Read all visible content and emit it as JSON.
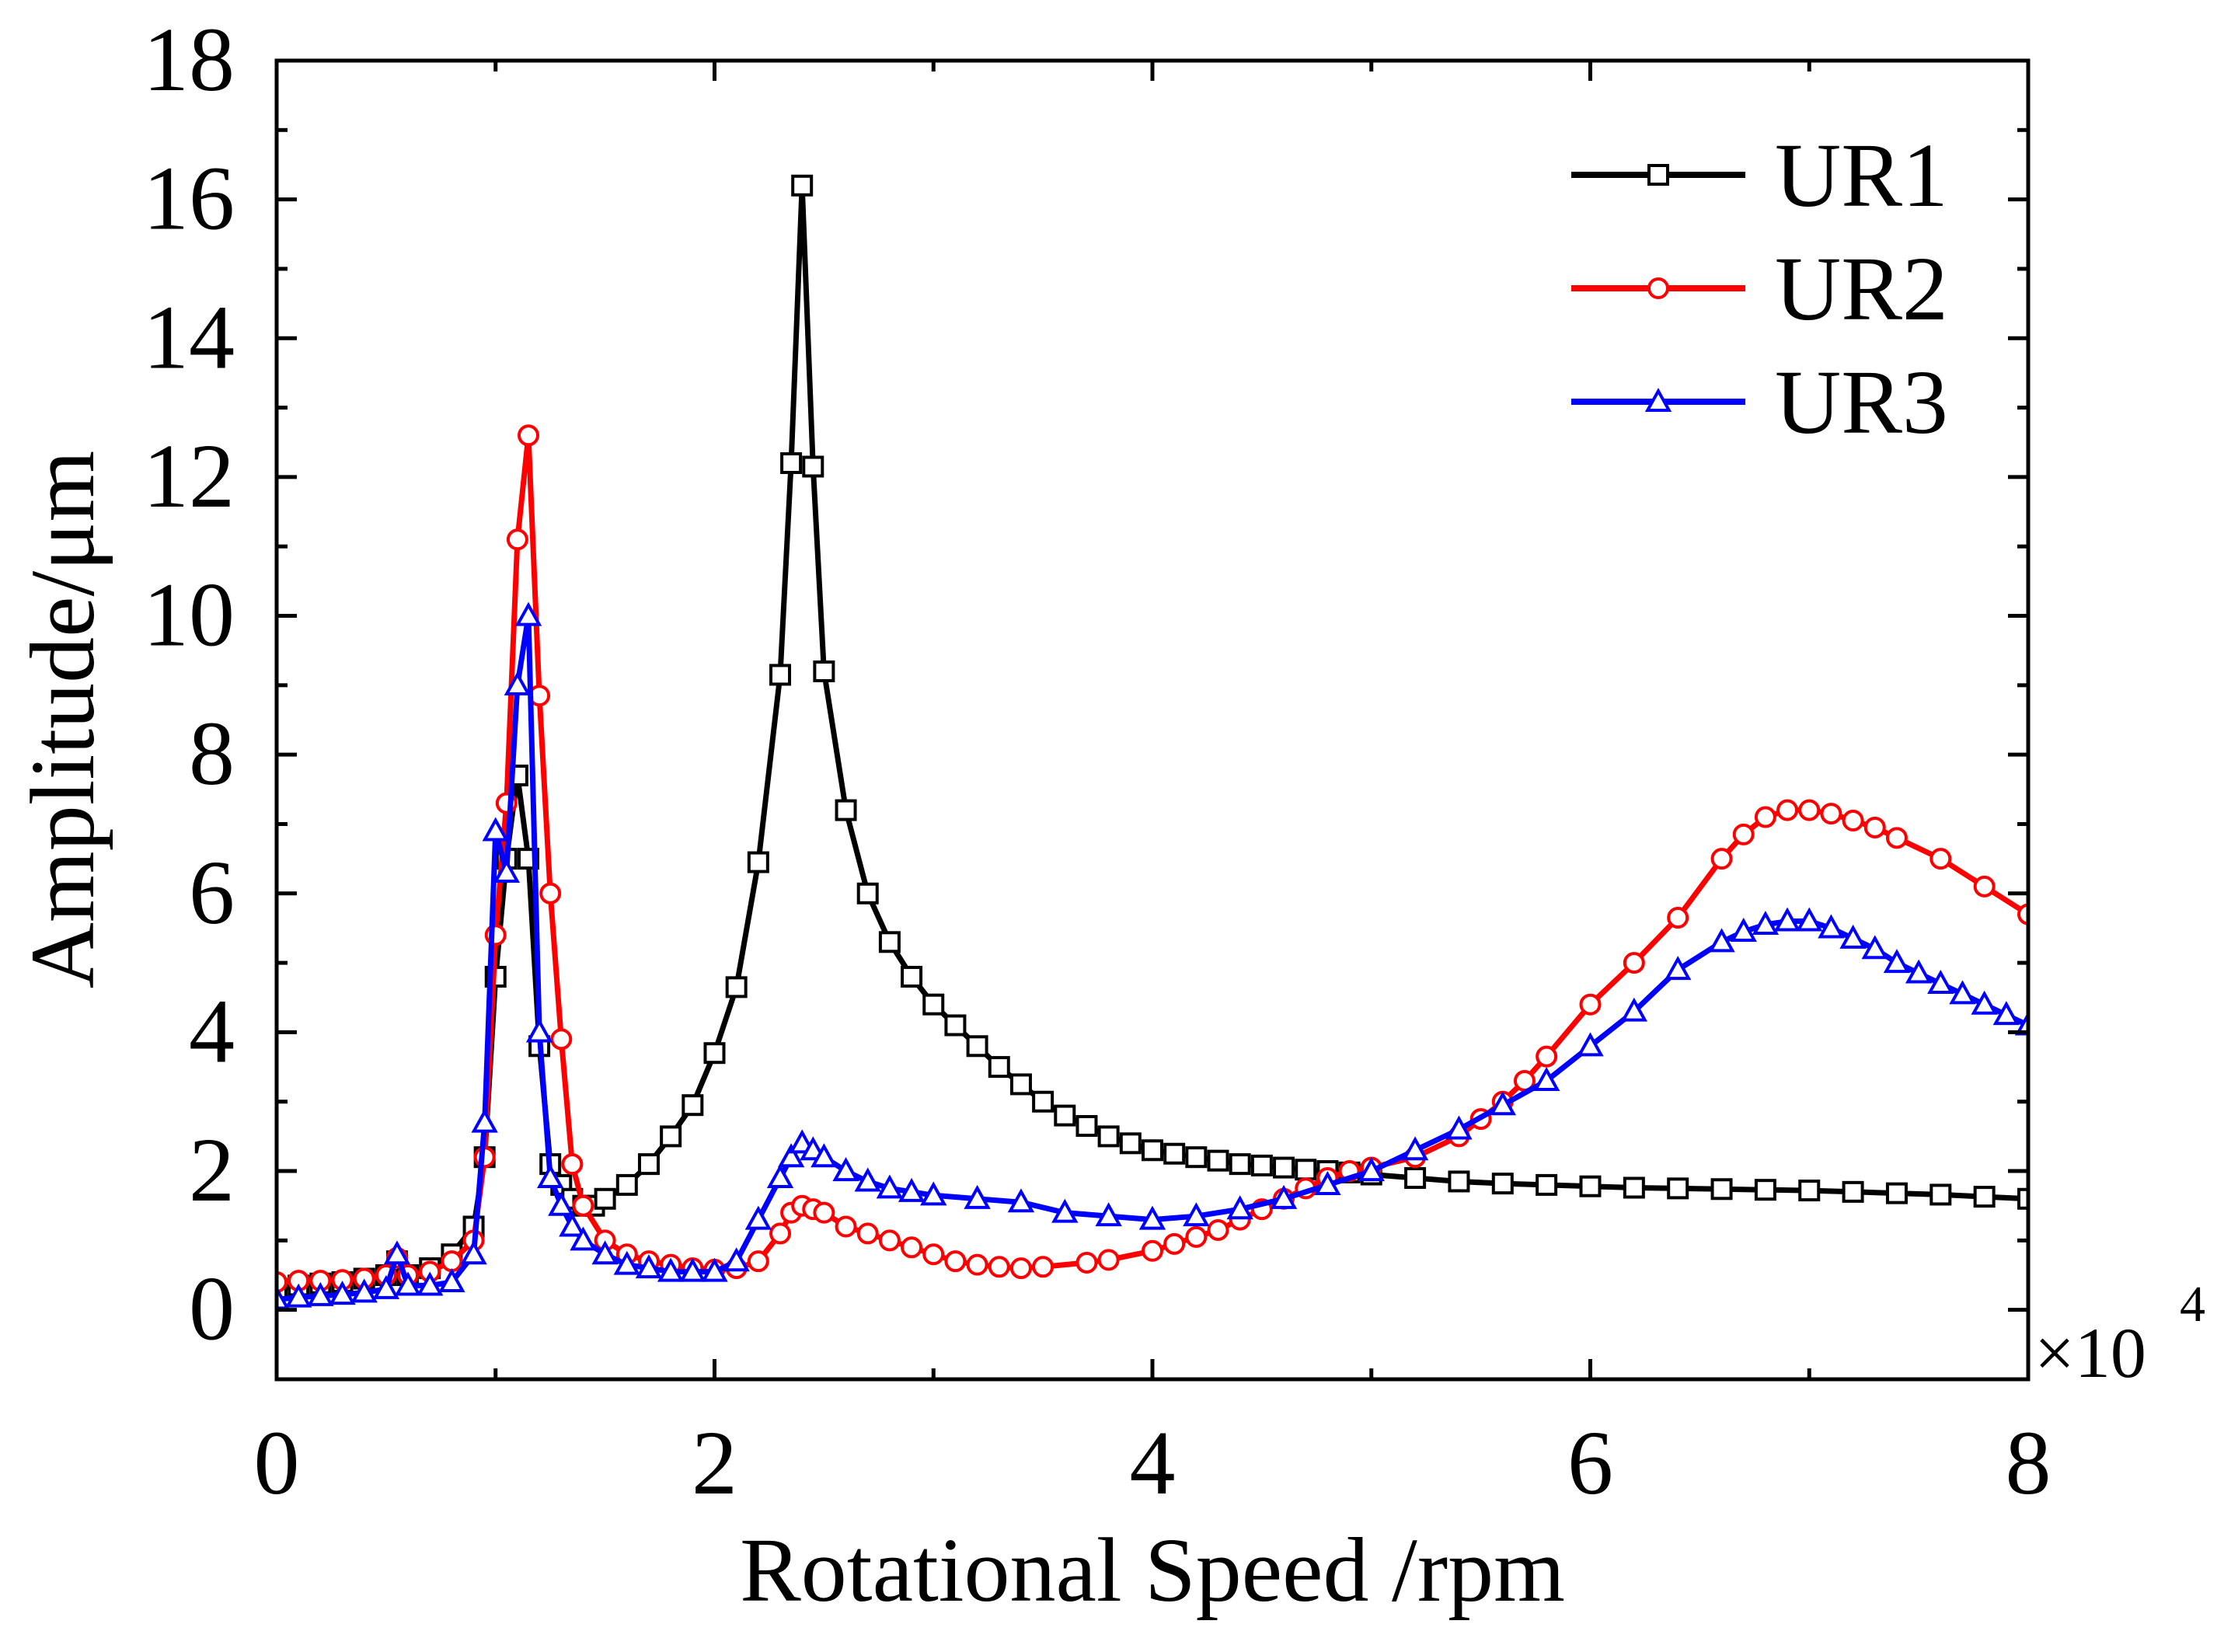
{
  "chart_data": {
    "type": "line",
    "title": "",
    "xlabel": "Rotational Speed /rpm",
    "ylabel": "Amplitude/μm",
    "x_multiplier_label": "×10",
    "x_multiplier_exponent": "4",
    "xlim": [
      0,
      8
    ],
    "ylim": [
      -1,
      18
    ],
    "xticks": [
      0,
      2,
      4,
      6,
      8
    ],
    "xtick_labels": [
      "0",
      "2",
      "4",
      "6",
      "8"
    ],
    "yticks": [
      0,
      2,
      4,
      6,
      8,
      10,
      12,
      14,
      16,
      18
    ],
    "ytick_labels": [
      "0",
      "2",
      "4",
      "6",
      "8",
      "10",
      "12",
      "14",
      "16",
      "18"
    ],
    "grid": false,
    "legend_position": "top-right",
    "series": [
      {
        "name": "UR1",
        "color": "#000000",
        "marker": "square",
        "x": [
          0.0,
          0.1,
          0.2,
          0.3,
          0.4,
          0.5,
          0.55,
          0.6,
          0.7,
          0.8,
          0.9,
          0.95,
          1.0,
          1.05,
          1.1,
          1.15,
          1.2,
          1.25,
          1.3,
          1.35,
          1.4,
          1.45,
          1.5,
          1.6,
          1.7,
          1.8,
          1.9,
          2.0,
          2.1,
          2.2,
          2.3,
          2.35,
          2.4,
          2.45,
          2.5,
          2.6,
          2.7,
          2.8,
          2.9,
          3.0,
          3.1,
          3.2,
          3.3,
          3.4,
          3.5,
          3.6,
          3.7,
          3.8,
          3.9,
          4.0,
          4.1,
          4.2,
          4.3,
          4.4,
          4.5,
          4.6,
          4.7,
          4.8,
          4.9,
          5.0,
          5.2,
          5.4,
          5.6,
          5.8,
          6.0,
          6.2,
          6.4,
          6.6,
          6.8,
          7.0,
          7.2,
          7.4,
          7.6,
          7.8,
          8.0
        ],
        "y": [
          0.3,
          0.35,
          0.38,
          0.4,
          0.45,
          0.5,
          0.7,
          0.5,
          0.6,
          0.8,
          1.2,
          2.2,
          4.8,
          6.5,
          7.7,
          6.5,
          3.8,
          2.1,
          1.8,
          1.6,
          1.5,
          1.5,
          1.6,
          1.8,
          2.1,
          2.5,
          2.95,
          3.7,
          4.65,
          6.45,
          9.15,
          12.2,
          16.2,
          12.15,
          9.2,
          7.2,
          6.0,
          5.3,
          4.8,
          4.4,
          4.1,
          3.8,
          3.5,
          3.25,
          3.0,
          2.8,
          2.65,
          2.5,
          2.4,
          2.3,
          2.25,
          2.2,
          2.15,
          2.1,
          2.08,
          2.05,
          2.02,
          2.0,
          1.98,
          1.95,
          1.9,
          1.85,
          1.82,
          1.8,
          1.78,
          1.76,
          1.75,
          1.74,
          1.73,
          1.72,
          1.7,
          1.68,
          1.66,
          1.63,
          1.6
        ]
      },
      {
        "name": "UR2",
        "color": "#ff0000",
        "marker": "circle",
        "x": [
          0.0,
          0.1,
          0.2,
          0.3,
          0.4,
          0.5,
          0.55,
          0.6,
          0.7,
          0.8,
          0.9,
          0.95,
          1.0,
          1.05,
          1.1,
          1.15,
          1.2,
          1.25,
          1.3,
          1.35,
          1.4,
          1.5,
          1.6,
          1.7,
          1.8,
          1.9,
          2.0,
          2.1,
          2.2,
          2.3,
          2.35,
          2.4,
          2.45,
          2.5,
          2.6,
          2.7,
          2.8,
          2.9,
          3.0,
          3.1,
          3.2,
          3.3,
          3.4,
          3.5,
          3.7,
          3.8,
          4.0,
          4.1,
          4.2,
          4.3,
          4.4,
          4.5,
          4.6,
          4.7,
          4.8,
          4.9,
          5.0,
          5.2,
          5.4,
          5.5,
          5.6,
          5.7,
          5.8,
          6.0,
          6.2,
          6.4,
          6.6,
          6.7,
          6.8,
          6.9,
          7.0,
          7.1,
          7.2,
          7.3,
          7.4,
          7.6,
          7.8,
          8.0
        ],
        "y": [
          0.4,
          0.42,
          0.42,
          0.43,
          0.45,
          0.5,
          0.75,
          0.5,
          0.55,
          0.7,
          1.0,
          2.2,
          5.4,
          7.3,
          11.1,
          12.6,
          8.85,
          6.0,
          3.9,
          2.1,
          1.5,
          1.0,
          0.8,
          0.7,
          0.65,
          0.6,
          0.58,
          0.6,
          0.7,
          1.1,
          1.4,
          1.5,
          1.45,
          1.4,
          1.2,
          1.1,
          1.0,
          0.9,
          0.8,
          0.7,
          0.65,
          0.62,
          0.6,
          0.62,
          0.68,
          0.72,
          0.85,
          0.95,
          1.05,
          1.15,
          1.3,
          1.45,
          1.6,
          1.75,
          1.9,
          2.0,
          2.05,
          2.2,
          2.5,
          2.75,
          3.0,
          3.3,
          3.65,
          4.4,
          5.0,
          5.65,
          6.5,
          6.85,
          7.1,
          7.2,
          7.2,
          7.15,
          7.05,
          6.95,
          6.8,
          6.5,
          6.1,
          5.7
        ]
      },
      {
        "name": "UR3",
        "color": "#0000ff",
        "marker": "triangle",
        "x": [
          0.0,
          0.1,
          0.2,
          0.3,
          0.4,
          0.5,
          0.55,
          0.6,
          0.7,
          0.8,
          0.9,
          0.95,
          1.0,
          1.05,
          1.1,
          1.15,
          1.2,
          1.25,
          1.3,
          1.35,
          1.4,
          1.5,
          1.6,
          1.7,
          1.8,
          1.9,
          2.0,
          2.1,
          2.2,
          2.3,
          2.35,
          2.4,
          2.45,
          2.5,
          2.6,
          2.7,
          2.8,
          2.9,
          3.0,
          3.2,
          3.4,
          3.6,
          3.8,
          4.0,
          4.2,
          4.4,
          4.6,
          4.8,
          5.0,
          5.2,
          5.4,
          5.6,
          5.8,
          6.0,
          6.2,
          6.4,
          6.6,
          6.7,
          6.8,
          6.9,
          7.0,
          7.1,
          7.2,
          7.3,
          7.4,
          7.5,
          7.6,
          7.7,
          7.8,
          7.9,
          8.0
        ],
        "y": [
          0.15,
          0.18,
          0.2,
          0.22,
          0.25,
          0.3,
          0.8,
          0.35,
          0.35,
          0.4,
          0.8,
          2.7,
          6.9,
          6.3,
          9.0,
          10.0,
          4.0,
          1.9,
          1.5,
          1.2,
          1.0,
          0.8,
          0.65,
          0.6,
          0.55,
          0.55,
          0.55,
          0.7,
          1.3,
          1.9,
          2.2,
          2.4,
          2.3,
          2.2,
          2.0,
          1.85,
          1.75,
          1.7,
          1.65,
          1.6,
          1.55,
          1.4,
          1.35,
          1.3,
          1.35,
          1.45,
          1.6,
          1.8,
          2.0,
          2.3,
          2.6,
          2.95,
          3.3,
          3.8,
          4.3,
          4.9,
          5.3,
          5.45,
          5.55,
          5.6,
          5.6,
          5.5,
          5.35,
          5.2,
          5.0,
          4.85,
          4.7,
          4.55,
          4.4,
          4.25,
          4.1
        ]
      }
    ]
  }
}
